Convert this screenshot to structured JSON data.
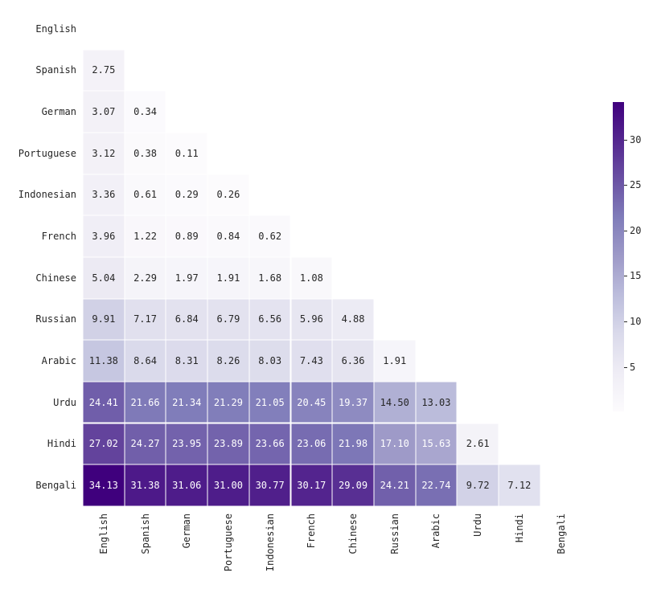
{
  "figure": {
    "background": "#ffffff",
    "text_color": "#262626"
  },
  "chart_data": {
    "type": "heatmap",
    "title": "",
    "xlabel": "",
    "ylabel": "",
    "shape": "lower-triangle",
    "labels": [
      "English",
      "Spanish",
      "German",
      "Portuguese",
      "Indonesian",
      "French",
      "Chinese",
      "Russian",
      "Arabic",
      "Urdu",
      "Hindi",
      "Bengali"
    ],
    "lower_triangle_rows": [
      [],
      [
        2.75
      ],
      [
        3.07,
        0.34
      ],
      [
        3.12,
        0.38,
        0.11
      ],
      [
        3.36,
        0.61,
        0.29,
        0.26
      ],
      [
        3.96,
        1.22,
        0.89,
        0.84,
        0.62
      ],
      [
        5.04,
        2.29,
        1.97,
        1.91,
        1.68,
        1.08
      ],
      [
        9.91,
        7.17,
        6.84,
        6.79,
        6.56,
        5.96,
        4.88
      ],
      [
        11.38,
        8.64,
        8.31,
        8.26,
        8.03,
        7.43,
        6.36,
        1.91
      ],
      [
        24.41,
        21.66,
        21.34,
        21.29,
        21.05,
        20.45,
        19.37,
        14.5,
        13.03
      ],
      [
        27.02,
        24.27,
        23.95,
        23.89,
        23.66,
        23.06,
        21.98,
        17.1,
        15.63,
        2.61
      ],
      [
        34.13,
        31.38,
        31.06,
        31.0,
        30.77,
        30.17,
        29.09,
        24.21,
        22.74,
        9.72,
        7.12
      ]
    ],
    "value_decimals": 2,
    "vmin": 0.11,
    "vmax": 34.13,
    "colormap": {
      "name": "Purples",
      "stops": [
        "#fcfbfd",
        "#efedf5",
        "#dadaeb",
        "#bcbddc",
        "#9e9ac8",
        "#807dba",
        "#6a51a3",
        "#54278f",
        "#3f007d"
      ]
    },
    "colorbar": {
      "position": "right",
      "ticks": [
        5,
        10,
        15,
        20,
        25,
        30
      ]
    },
    "annotation_text_colors": {
      "dark": "#262626",
      "light": "#ffffff"
    },
    "grid_line_color": "#ffffff",
    "legend": "none",
    "grid": "off"
  }
}
